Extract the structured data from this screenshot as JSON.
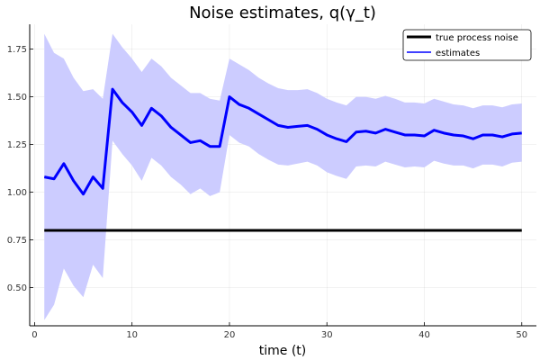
{
  "chart_data": {
    "type": "line",
    "title": "Noise estimates, q(γ_t)",
    "xlabel": "time (t)",
    "ylabel": "",
    "xlim": [
      -0.5,
      51.5
    ],
    "ylim": [
      0.3,
      1.88
    ],
    "xticks": [
      0,
      10,
      20,
      30,
      40,
      50
    ],
    "xtick_labels": [
      "0",
      "10",
      "20",
      "30",
      "40",
      "50"
    ],
    "yticks": [
      0.5,
      0.75,
      1.0,
      1.25,
      1.5,
      1.75
    ],
    "ytick_labels": [
      "0.50",
      "0.75",
      "1.00",
      "1.25",
      "1.50",
      "1.75"
    ],
    "grid": true,
    "legend_position": "top-right",
    "x": [
      1,
      2,
      3,
      4,
      5,
      6,
      7,
      8,
      9,
      10,
      11,
      12,
      13,
      14,
      15,
      16,
      17,
      18,
      19,
      20,
      21,
      22,
      23,
      24,
      25,
      26,
      27,
      28,
      29,
      30,
      31,
      32,
      33,
      34,
      35,
      36,
      37,
      38,
      39,
      40,
      41,
      42,
      43,
      44,
      45,
      46,
      47,
      48,
      49,
      50
    ],
    "series": [
      {
        "name": "true process noise",
        "color": "#000000",
        "values": [
          0.8,
          0.8,
          0.8,
          0.8,
          0.8,
          0.8,
          0.8,
          0.8,
          0.8,
          0.8,
          0.8,
          0.8,
          0.8,
          0.8,
          0.8,
          0.8,
          0.8,
          0.8,
          0.8,
          0.8,
          0.8,
          0.8,
          0.8,
          0.8,
          0.8,
          0.8,
          0.8,
          0.8,
          0.8,
          0.8,
          0.8,
          0.8,
          0.8,
          0.8,
          0.8,
          0.8,
          0.8,
          0.8,
          0.8,
          0.8,
          0.8,
          0.8,
          0.8,
          0.8,
          0.8,
          0.8,
          0.8,
          0.8,
          0.8,
          0.8
        ]
      },
      {
        "name": "estimates",
        "color": "#0000ff",
        "values": [
          1.08,
          1.07,
          1.15,
          1.06,
          0.99,
          1.08,
          1.02,
          1.54,
          1.47,
          1.42,
          1.35,
          1.44,
          1.4,
          1.34,
          1.3,
          1.26,
          1.27,
          1.24,
          1.24,
          1.5,
          1.46,
          1.44,
          1.41,
          1.38,
          1.35,
          1.34,
          1.345,
          1.35,
          1.33,
          1.3,
          1.28,
          1.265,
          1.315,
          1.32,
          1.31,
          1.33,
          1.315,
          1.3,
          1.3,
          1.295,
          1.325,
          1.31,
          1.3,
          1.295,
          1.28,
          1.3,
          1.3,
          1.29,
          1.305,
          1.31
        ],
        "band_color": "#ccccff",
        "lower": [
          0.33,
          0.41,
          0.6,
          0.51,
          0.45,
          0.62,
          0.55,
          1.27,
          1.2,
          1.14,
          1.06,
          1.18,
          1.14,
          1.08,
          1.04,
          0.99,
          1.02,
          0.98,
          1.0,
          1.3,
          1.26,
          1.24,
          1.2,
          1.17,
          1.145,
          1.14,
          1.15,
          1.16,
          1.14,
          1.105,
          1.085,
          1.07,
          1.135,
          1.14,
          1.135,
          1.16,
          1.145,
          1.13,
          1.135,
          1.13,
          1.165,
          1.15,
          1.14,
          1.14,
          1.125,
          1.145,
          1.145,
          1.135,
          1.155,
          1.16
        ],
        "upper": [
          1.83,
          1.73,
          1.7,
          1.6,
          1.53,
          1.54,
          1.49,
          1.83,
          1.76,
          1.7,
          1.63,
          1.7,
          1.66,
          1.6,
          1.56,
          1.52,
          1.52,
          1.49,
          1.48,
          1.7,
          1.67,
          1.64,
          1.6,
          1.57,
          1.545,
          1.535,
          1.535,
          1.54,
          1.52,
          1.49,
          1.47,
          1.455,
          1.5,
          1.5,
          1.49,
          1.505,
          1.49,
          1.47,
          1.47,
          1.465,
          1.49,
          1.475,
          1.46,
          1.455,
          1.44,
          1.455,
          1.455,
          1.445,
          1.46,
          1.465
        ]
      }
    ]
  }
}
